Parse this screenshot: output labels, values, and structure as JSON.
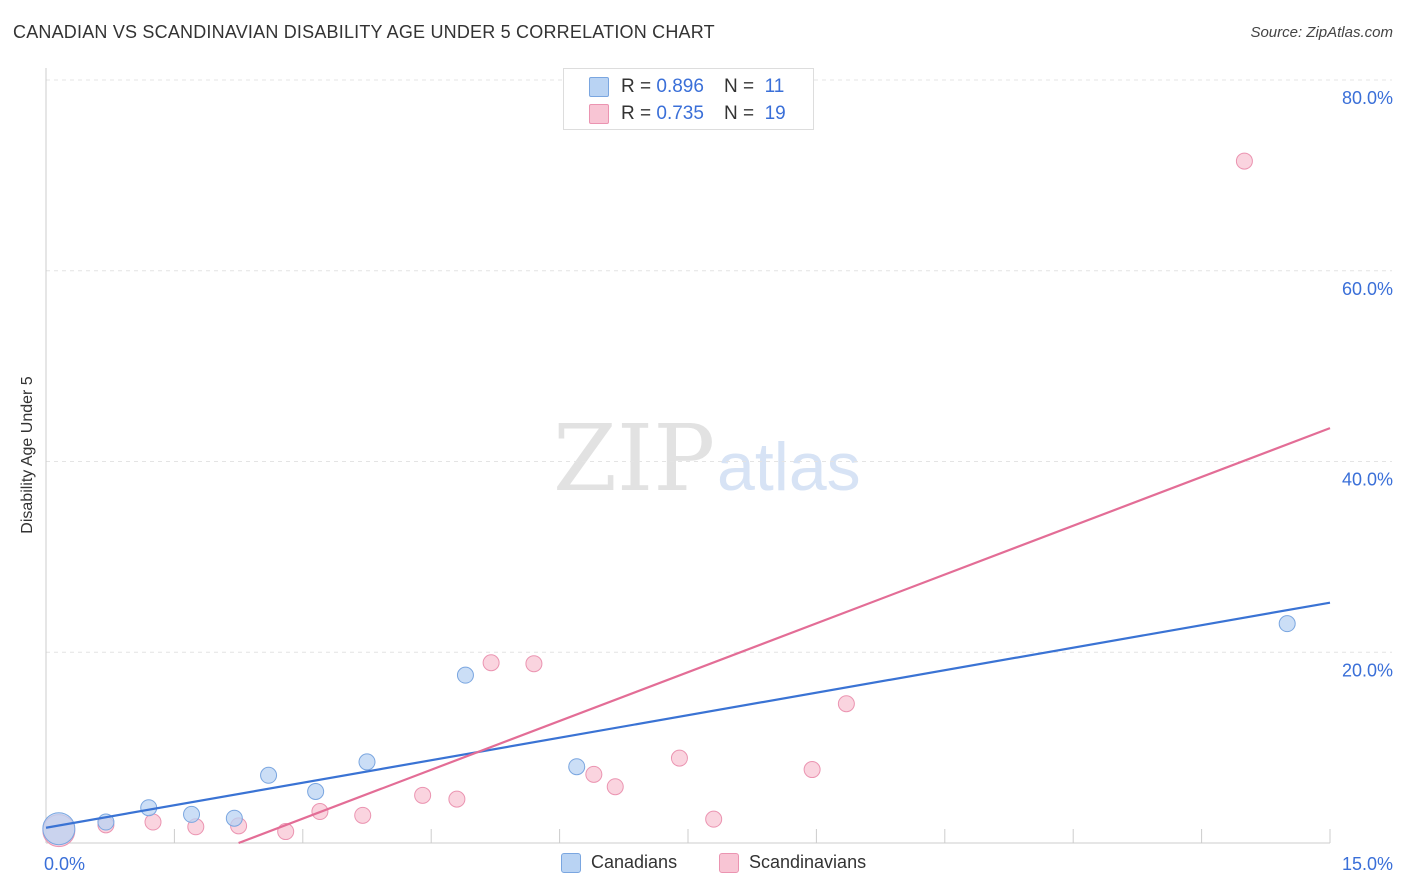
{
  "header": {
    "title": "CANADIAN VS SCANDINAVIAN DISABILITY AGE UNDER 5 CORRELATION CHART",
    "source": "Source: ZipAtlas.com"
  },
  "watermark": {
    "zip": "ZIP",
    "atlas": "atlas"
  },
  "legend_top": {
    "rows": [
      {
        "r_label": "R =",
        "r_value": "0.896",
        "n_label": "N =",
        "n_value": "11"
      },
      {
        "r_label": "R =",
        "r_value": "0.735",
        "n_label": "N =",
        "n_value": "19"
      }
    ]
  },
  "legend_bottom": {
    "canadians": "Canadians",
    "scandinavians": "Scandinavians"
  },
  "colors": {
    "blue_fill": "#b9d3f3",
    "blue_stroke": "#7aa6e0",
    "blue_line": "#3a73d4",
    "pink_fill": "#f8c5d4",
    "pink_stroke": "#eb94b1",
    "pink_line": "#e36d96",
    "axis_text": "#3a6fd8",
    "grid": "#e4e4e4"
  },
  "chart_data": {
    "type": "scatter",
    "title": "CANADIAN VS SCANDINAVIAN DISABILITY AGE UNDER 5 CORRELATION CHART",
    "xlabel": "",
    "ylabel": "Disability Age Under 5",
    "xlim": [
      0,
      15
    ],
    "ylim": [
      0,
      80
    ],
    "x_tick_labels": {
      "min": "0.0%",
      "max": "15.0%"
    },
    "y_ticks": [
      {
        "value": 20,
        "label": "20.0%"
      },
      {
        "value": 40,
        "label": "40.0%"
      },
      {
        "value": 60,
        "label": "60.0%"
      },
      {
        "value": 80,
        "label": "80.0%"
      }
    ],
    "series": [
      {
        "name": "Canadians",
        "r": 0.896,
        "n": 11,
        "points": [
          {
            "x": 0.15,
            "y": 1.5,
            "size": "large"
          },
          {
            "x": 0.7,
            "y": 2.2
          },
          {
            "x": 1.2,
            "y": 3.7
          },
          {
            "x": 1.7,
            "y": 3.0
          },
          {
            "x": 2.2,
            "y": 2.6
          },
          {
            "x": 2.6,
            "y": 7.1
          },
          {
            "x": 3.15,
            "y": 5.4
          },
          {
            "x": 3.75,
            "y": 8.5
          },
          {
            "x": 4.9,
            "y": 17.6
          },
          {
            "x": 6.2,
            "y": 8.0
          },
          {
            "x": 14.5,
            "y": 23.0
          }
        ],
        "trend": {
          "x": [
            0,
            15
          ],
          "y": [
            1.6,
            25.2
          ]
        }
      },
      {
        "name": "Scandinavians",
        "r": 0.735,
        "n": 19,
        "points": [
          {
            "x": 0.15,
            "y": 1.3,
            "size": "large"
          },
          {
            "x": 0.7,
            "y": 1.9
          },
          {
            "x": 1.25,
            "y": 2.2
          },
          {
            "x": 1.75,
            "y": 1.7
          },
          {
            "x": 2.25,
            "y": 1.8
          },
          {
            "x": 2.8,
            "y": 1.2
          },
          {
            "x": 3.2,
            "y": 3.3
          },
          {
            "x": 3.7,
            "y": 2.9
          },
          {
            "x": 4.4,
            "y": 5.0
          },
          {
            "x": 4.8,
            "y": 4.6
          },
          {
            "x": 5.2,
            "y": 18.9
          },
          {
            "x": 5.7,
            "y": 18.8
          },
          {
            "x": 6.4,
            "y": 7.2
          },
          {
            "x": 6.65,
            "y": 5.9
          },
          {
            "x": 7.4,
            "y": 8.9
          },
          {
            "x": 7.8,
            "y": 2.5
          },
          {
            "x": 8.95,
            "y": 7.7
          },
          {
            "x": 9.35,
            "y": 14.6
          },
          {
            "x": 14.0,
            "y": 71.5
          }
        ],
        "trend": {
          "x": [
            2.25,
            15
          ],
          "y": [
            0.0,
            43.5
          ]
        }
      }
    ],
    "legend": "top-center"
  }
}
